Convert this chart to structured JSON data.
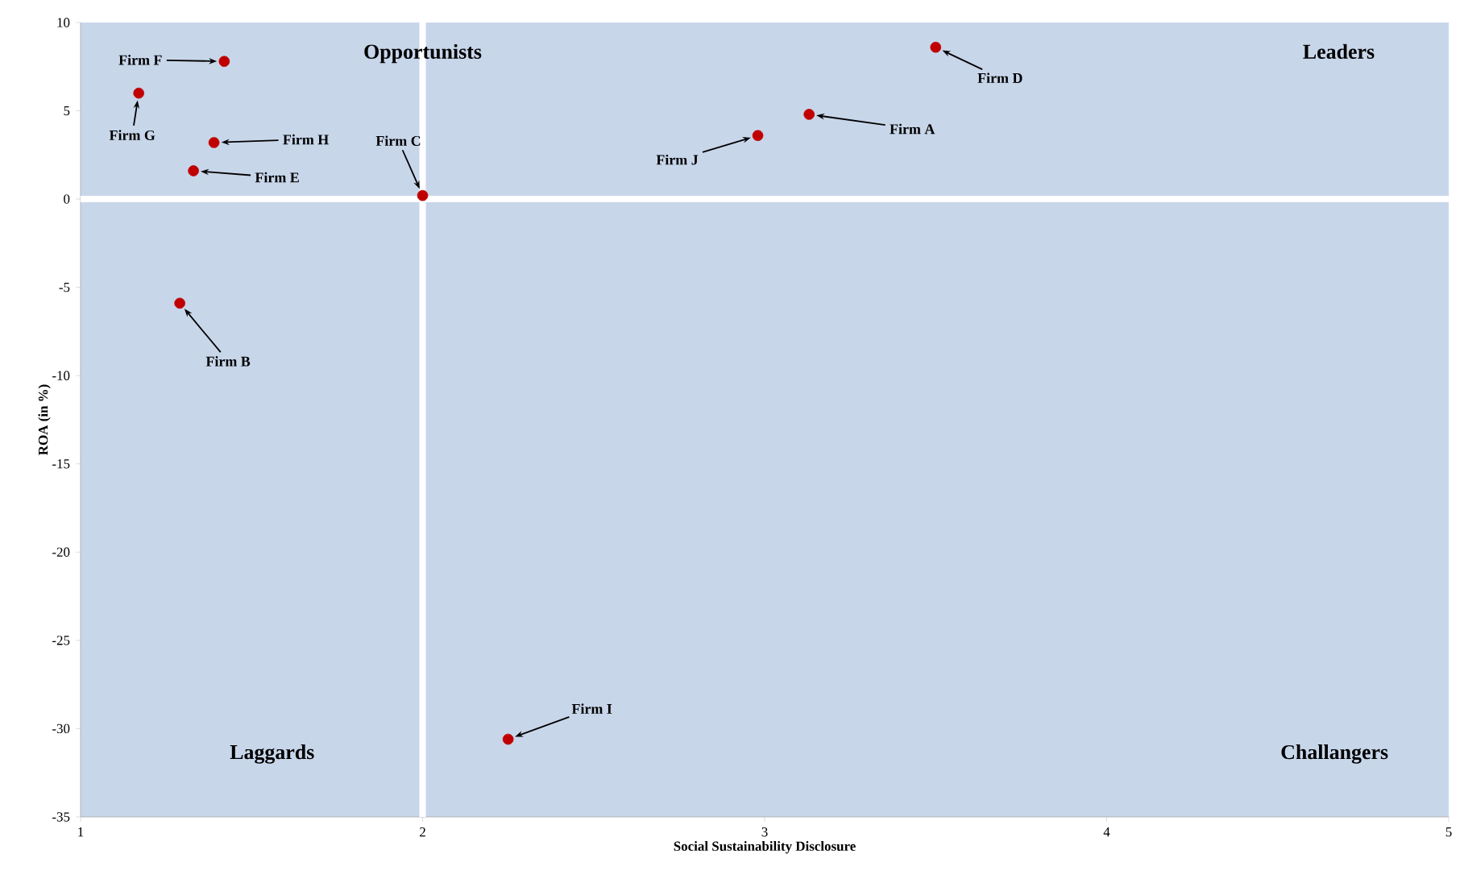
{
  "chart_data": {
    "type": "scatter",
    "xlabel": "Social Sustainability Disclosure",
    "ylabel": "ROA (in %)",
    "xlim": [
      1,
      5
    ],
    "xticks": [
      1,
      2,
      3,
      4,
      5
    ],
    "ylim": [
      -35,
      10
    ],
    "yticks": [
      -35,
      -30,
      -25,
      -20,
      -15,
      -10,
      -5,
      0,
      5,
      10
    ],
    "grid": false,
    "marker": "circle",
    "series": [
      {
        "color": "#c00000",
        "x": [
          3.13,
          1.29,
          2.0,
          3.5,
          1.33,
          1.42,
          1.17,
          1.39,
          2.25,
          2.98
        ],
        "values": [
          4.8,
          -5.9,
          0.2,
          8.6,
          1.6,
          7.8,
          6.0,
          3.2,
          -30.6,
          3.6
        ]
      }
    ],
    "ref_lines": [
      {
        "axis": "x",
        "value": 2,
        "color": "#ffffff"
      },
      {
        "axis": "y",
        "value": 0,
        "color": "#ffffff"
      }
    ],
    "annotations": [
      {
        "text": "Firm A",
        "x": 3.13,
        "y": 4.8
      },
      {
        "text": "Firm B",
        "x": 1.29,
        "y": -5.9
      },
      {
        "text": "Firm C",
        "x": 2.0,
        "y": 0.2
      },
      {
        "text": "Firm D",
        "x": 3.5,
        "y": 8.6
      },
      {
        "text": "Firm E",
        "x": 1.33,
        "y": 1.6
      },
      {
        "text": "Firm F",
        "x": 1.42,
        "y": 7.8
      },
      {
        "text": "Firm G",
        "x": 1.17,
        "y": 6.0
      },
      {
        "text": "Firm H",
        "x": 1.39,
        "y": 3.2
      },
      {
        "text": "Firm I",
        "x": 2.25,
        "y": -30.6
      },
      {
        "text": "Firm J",
        "x": 2.98,
        "y": 3.6
      },
      "Opportunists",
      "Leaders",
      "Laggards",
      "Challangers"
    ]
  }
}
